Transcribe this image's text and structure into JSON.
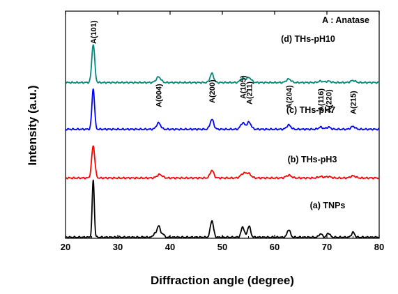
{
  "chart_data": {
    "type": "line",
    "xlabel": "Diffraction angle (degree)",
    "ylabel": "Intensity (a.u.)",
    "xlim": [
      20,
      80
    ],
    "xticks": [
      "20",
      "30",
      "40",
      "50",
      "60",
      "70",
      "80"
    ],
    "legend_note": "A : Anatase",
    "grid": false,
    "peak_labels": [
      {
        "label": "A(101)",
        "x": 25.3
      },
      {
        "label": "A(004)",
        "x": 37.8
      },
      {
        "label": "A(200)",
        "x": 48.0
      },
      {
        "label": "A(105)",
        "x": 53.9
      },
      {
        "label": "A(211)",
        "x": 55.1
      },
      {
        "label": "A(204)",
        "x": 62.7
      },
      {
        "label": "A(116)",
        "x": 68.8
      },
      {
        "label": "A(220)",
        "x": 70.3
      },
      {
        "label": "A(215)",
        "x": 75.0
      }
    ],
    "series": [
      {
        "name": "(a) TNPs",
        "color": "#000000",
        "peaks": [
          {
            "x": 25.3,
            "h": 82,
            "w": 0.2
          },
          {
            "x": 37.0,
            "h": 5,
            "w": 0.25
          },
          {
            "x": 37.8,
            "h": 17,
            "w": 0.3
          },
          {
            "x": 38.6,
            "h": 5,
            "w": 0.25
          },
          {
            "x": 48.0,
            "h": 24,
            "w": 0.3
          },
          {
            "x": 53.9,
            "h": 15,
            "w": 0.3
          },
          {
            "x": 55.1,
            "h": 16,
            "w": 0.3
          },
          {
            "x": 62.7,
            "h": 11,
            "w": 0.3
          },
          {
            "x": 68.8,
            "h": 5,
            "w": 0.3
          },
          {
            "x": 70.3,
            "h": 6,
            "w": 0.3
          },
          {
            "x": 75.0,
            "h": 7,
            "w": 0.3
          }
        ]
      },
      {
        "name": "(b) THs-pH3",
        "color": "#ff0000",
        "peaks": [
          {
            "x": 25.3,
            "h": 46,
            "w": 0.3
          },
          {
            "x": 38.0,
            "h": 5,
            "w": 0.5
          },
          {
            "x": 48.0,
            "h": 11,
            "w": 0.35
          },
          {
            "x": 54.0,
            "h": 6,
            "w": 0.5
          },
          {
            "x": 55.0,
            "h": 6,
            "w": 0.5
          },
          {
            "x": 62.7,
            "h": 4,
            "w": 0.5
          },
          {
            "x": 68.8,
            "h": 2,
            "w": 0.5
          },
          {
            "x": 70.3,
            "h": 2,
            "w": 0.5
          },
          {
            "x": 75.0,
            "h": 3,
            "w": 0.5
          }
        ]
      },
      {
        "name": "(c) THs-pH7",
        "color": "#0000ff",
        "peaks": [
          {
            "x": 25.3,
            "h": 58,
            "w": 0.25
          },
          {
            "x": 37.8,
            "h": 9,
            "w": 0.4
          },
          {
            "x": 48.0,
            "h": 14,
            "w": 0.35
          },
          {
            "x": 53.9,
            "h": 9,
            "w": 0.4
          },
          {
            "x": 55.1,
            "h": 10,
            "w": 0.4
          },
          {
            "x": 62.7,
            "h": 6,
            "w": 0.4
          },
          {
            "x": 68.8,
            "h": 3,
            "w": 0.4
          },
          {
            "x": 70.3,
            "h": 3,
            "w": 0.4
          },
          {
            "x": 75.0,
            "h": 4,
            "w": 0.4
          }
        ]
      },
      {
        "name": "(d) THs-pH10",
        "color": "#00887a",
        "peaks": [
          {
            "x": 25.3,
            "h": 55,
            "w": 0.28
          },
          {
            "x": 37.8,
            "h": 8,
            "w": 0.45
          },
          {
            "x": 48.0,
            "h": 13,
            "w": 0.35
          },
          {
            "x": 53.9,
            "h": 6,
            "w": 0.45
          },
          {
            "x": 55.1,
            "h": 7,
            "w": 0.45
          },
          {
            "x": 62.7,
            "h": 5,
            "w": 0.45
          },
          {
            "x": 68.8,
            "h": 2,
            "w": 0.45
          },
          {
            "x": 70.3,
            "h": 2,
            "w": 0.45
          },
          {
            "x": 75.0,
            "h": 3,
            "w": 0.45
          }
        ]
      }
    ]
  }
}
